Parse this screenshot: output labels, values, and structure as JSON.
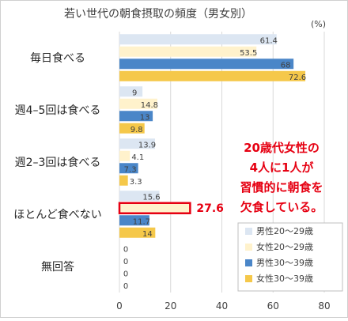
{
  "chart_data": {
    "type": "bar",
    "orientation": "horizontal",
    "title": "若い世代の朝食摂取の頻度（男女別）",
    "unit_label": "(%)",
    "categories": [
      "毎日食べる",
      "週4–5回は食べる",
      "週2–3回は食べる",
      "ほとんど食べない",
      "無回答"
    ],
    "series": [
      {
        "name": "男性20～29歳",
        "color": "#dce6f2",
        "values": [
          61.4,
          9,
          13.9,
          15.6,
          0
        ],
        "labels": [
          "61.4",
          "9",
          "13.9",
          "15.6",
          "0"
        ]
      },
      {
        "name": "女性20～29歳",
        "color": "#fff2cc",
        "values": [
          53.5,
          14.8,
          4.1,
          27.6,
          0
        ],
        "labels": [
          "53.5",
          "14.8",
          "4.1",
          "27.6",
          "0"
        ]
      },
      {
        "name": "男性30～39歳",
        "color": "#4a86c8",
        "values": [
          68,
          13,
          7.3,
          11.7,
          0
        ],
        "labels": [
          "68",
          "13",
          "7.3",
          "11.7",
          "0"
        ]
      },
      {
        "name": "女性30～39歳",
        "color": "#f5c84a",
        "values": [
          72.6,
          9.8,
          3.3,
          14,
          0
        ],
        "labels": [
          "72.6",
          "9.8",
          "3.3",
          "14",
          "0"
        ]
      }
    ],
    "xlim": [
      0,
      80
    ],
    "xticks": [
      0,
      20,
      40,
      60,
      80
    ],
    "grid": true,
    "legend_position": "bottom-right",
    "highlight": {
      "category_index": 3,
      "series_index": 1,
      "color": "#e60012"
    },
    "annotation": {
      "lines": [
        "20歳代女性の",
        "4人に1人が",
        "習慣的に朝食を",
        "欠食している。"
      ],
      "color": "#e60012"
    }
  }
}
